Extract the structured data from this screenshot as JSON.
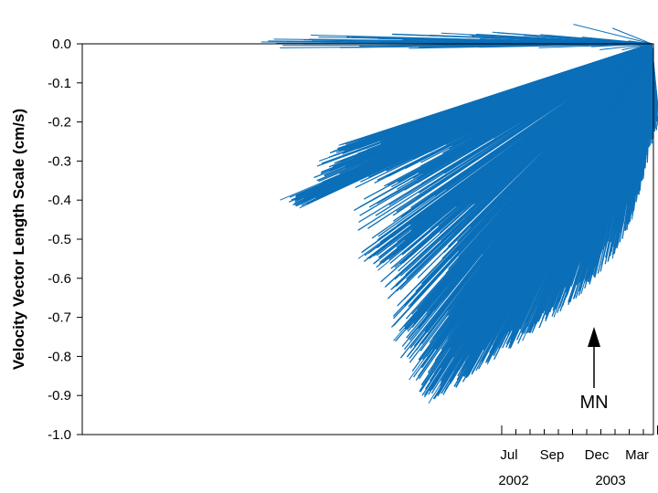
{
  "chart_data": {
    "type": "scatter",
    "subtype": "velocity-vector-stick-plot",
    "title": "",
    "ylabel": "Velocity Vector Length Scale (cm/s)",
    "xlabel": "",
    "ylim": [
      -1.0,
      0.0
    ],
    "yticks": [
      "0.0",
      "-0.1",
      "-0.2",
      "-0.3",
      "-0.4",
      "-0.5",
      "-0.6",
      "-0.7",
      "-0.8",
      "-0.9",
      "-1.0"
    ],
    "x_month_ticks": [
      "Jul",
      "Sep",
      "Dec",
      "Mar"
    ],
    "x_year_labels": [
      "2002",
      "2003"
    ],
    "grid": false,
    "color": "#0b6fb8",
    "north_arrow_label": "MN",
    "vector_origin": [
      0.0,
      0.0
    ],
    "approx_vector_tips": [
      {
        "x": -0.95,
        "y": -0.4
      },
      {
        "x": -0.9,
        "y": -0.42
      },
      {
        "x": -0.85,
        "y": -0.3
      },
      {
        "x": -0.8,
        "y": -0.26
      },
      {
        "x": -0.75,
        "y": -0.55
      },
      {
        "x": -0.7,
        "y": -0.58
      },
      {
        "x": -0.66,
        "y": -0.76
      },
      {
        "x": -0.62,
        "y": -0.86
      },
      {
        "x": -0.57,
        "y": -0.92
      },
      {
        "x": -0.5,
        "y": -0.88
      },
      {
        "x": -0.42,
        "y": -0.82
      },
      {
        "x": -0.33,
        "y": -0.76
      },
      {
        "x": -0.25,
        "y": -0.7
      },
      {
        "x": -0.18,
        "y": -0.64
      },
      {
        "x": -0.1,
        "y": -0.55
      },
      {
        "x": -0.05,
        "y": -0.45
      },
      {
        "x": 0.02,
        "y": -0.2
      },
      {
        "x": -0.3,
        "y": 0.02
      },
      {
        "x": -0.2,
        "y": 0.05
      },
      {
        "x": -0.1,
        "y": 0.04
      }
    ]
  }
}
